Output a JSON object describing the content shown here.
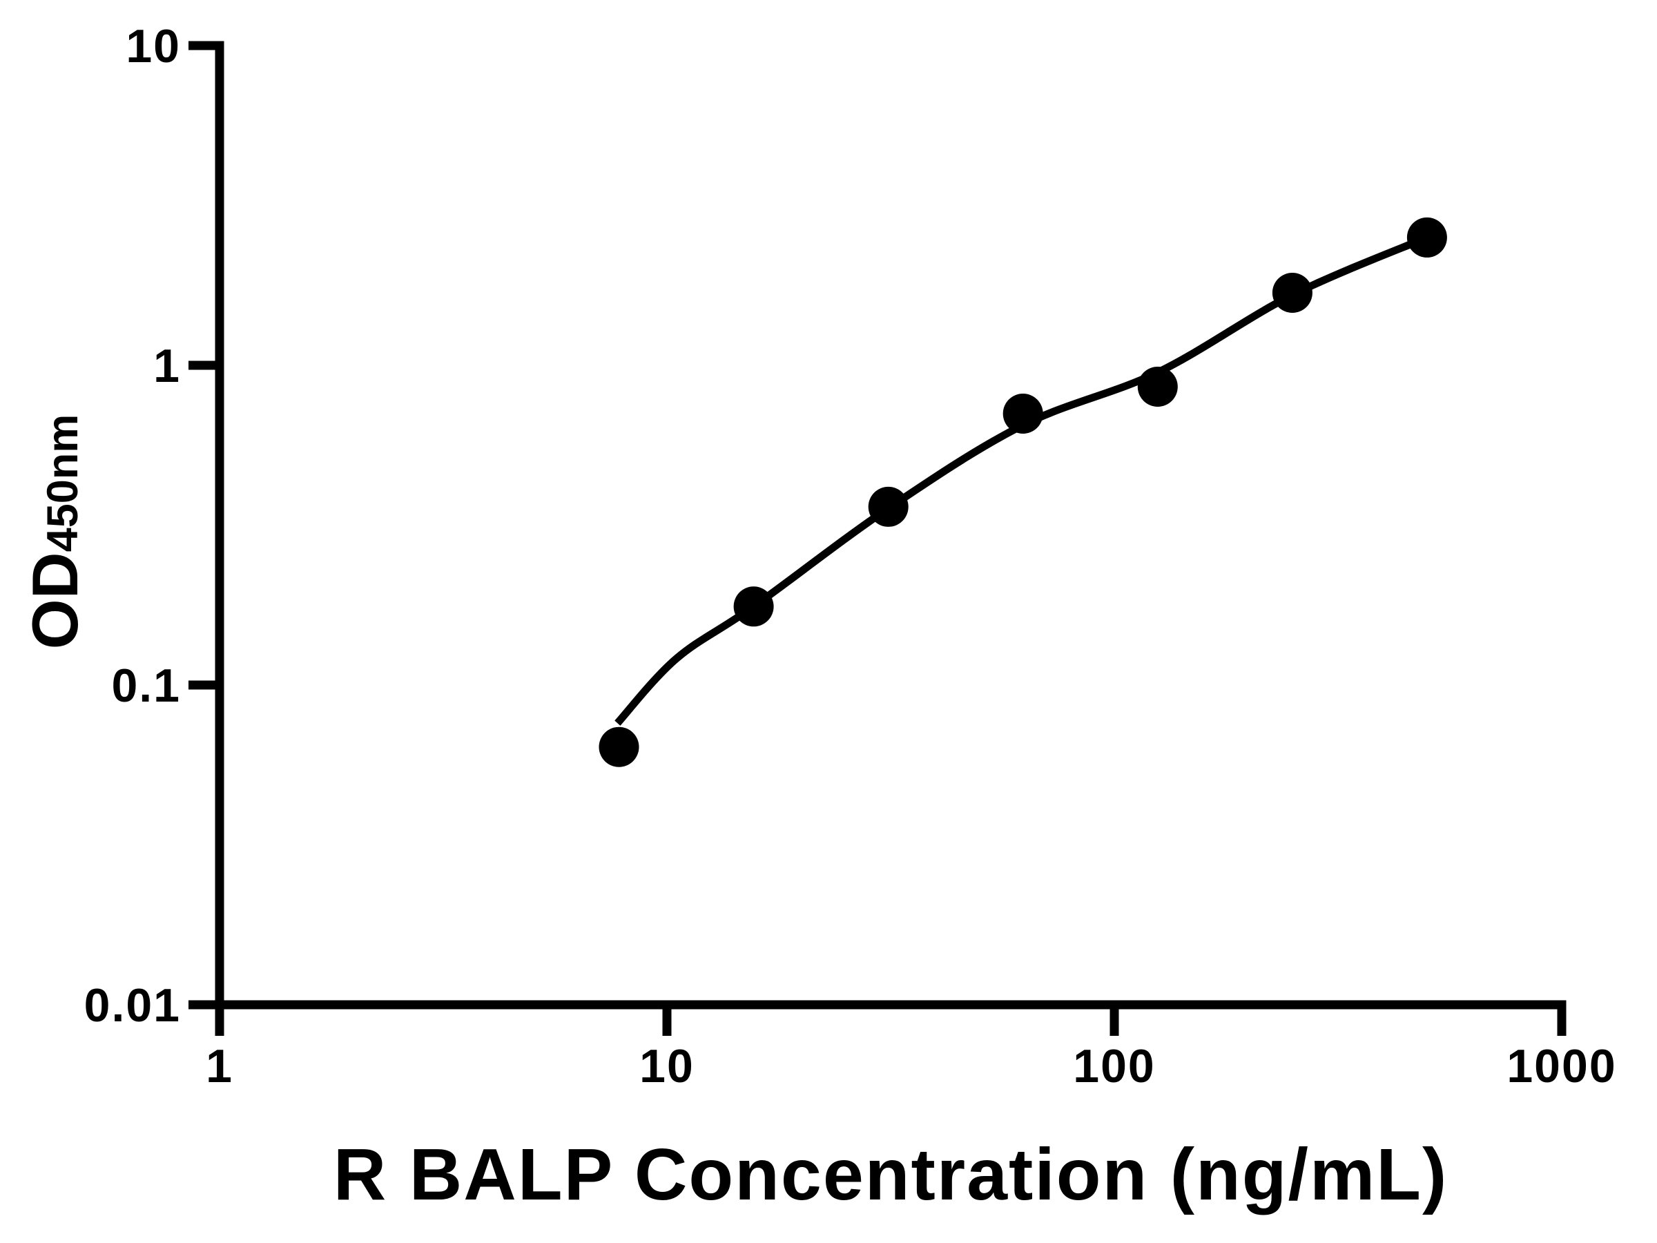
{
  "figure": {
    "background_color": "#ffffff",
    "foreground_color": "#000000"
  },
  "chart_data": {
    "type": "scatter",
    "title": "",
    "xlabel": "R BALP Concentration (ng/mL)",
    "ylabel": "OD",
    "ylabel_subscript": "450nm",
    "x_scale": "log",
    "y_scale": "log",
    "xlim": [
      1,
      1000
    ],
    "ylim": [
      0.01,
      10
    ],
    "grid": false,
    "legend": "none",
    "x_ticks": {
      "values": [
        1,
        10,
        100,
        1000
      ],
      "labels": [
        "1",
        "10",
        "100",
        "1000"
      ]
    },
    "y_ticks": {
      "values": [
        0.01,
        0.1,
        1,
        10
      ],
      "labels": [
        "0.01",
        "0.1",
        "1",
        "10"
      ]
    },
    "series": [
      {
        "name": "R BALP standard points",
        "marker": "filled-circle",
        "color": "#000000",
        "x": [
          7.8125,
          15.625,
          31.25,
          62.5,
          125,
          250,
          500
        ],
        "y": [
          0.064,
          0.176,
          0.361,
          0.706,
          0.857,
          1.686,
          2.511
        ]
      }
    ],
    "fit_curve": {
      "name": "standard-curve-fit-line",
      "color": "#000000",
      "points": [
        [
          7.75,
          0.076
        ],
        [
          10.5,
          0.121
        ],
        [
          15.625,
          0.176
        ],
        [
          31.25,
          0.357
        ],
        [
          62.5,
          0.65
        ],
        [
          125,
          0.95
        ],
        [
          250,
          1.66
        ],
        [
          500,
          2.51
        ]
      ]
    }
  }
}
